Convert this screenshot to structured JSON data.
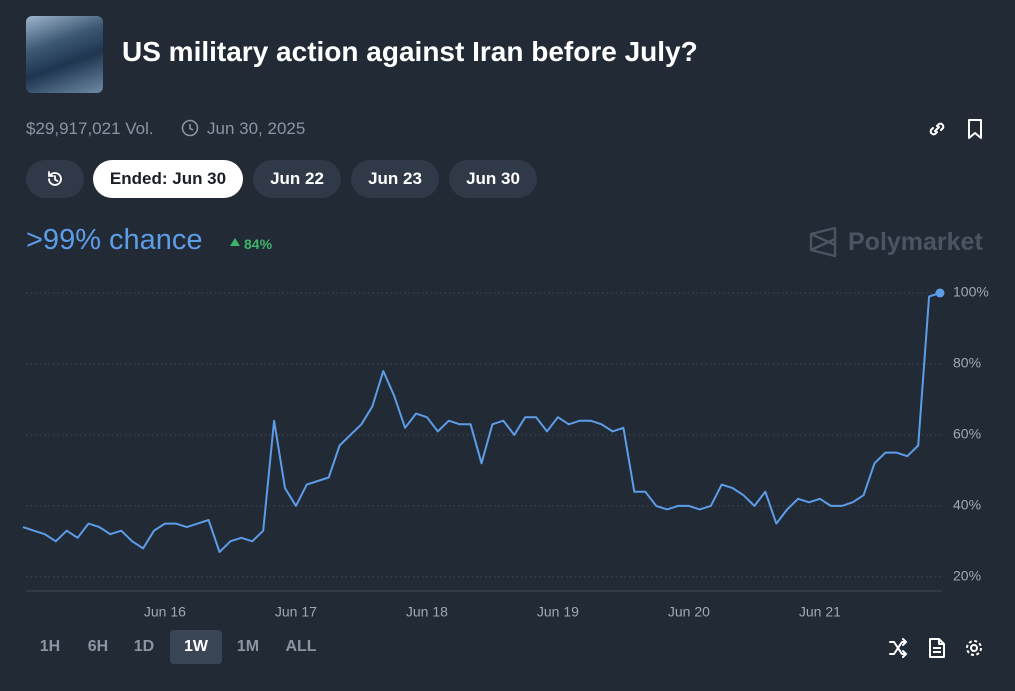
{
  "header": {
    "title": "US military action against Iran before July?",
    "volume": "$29,917,021 Vol.",
    "end_date": "Jun 30, 2025"
  },
  "tabs": {
    "items": [
      "Ended: Jun 30",
      "Jun 22",
      "Jun 23",
      "Jun 30"
    ],
    "active": 0
  },
  "summary": {
    "chance": ">99% chance",
    "change": "84%",
    "brand": "Polymarket"
  },
  "ranges": {
    "items": [
      "1H",
      "6H",
      "1D",
      "1W",
      "1M",
      "ALL"
    ],
    "active": 3
  },
  "chart_data": {
    "type": "line",
    "categories": [
      null,
      null,
      null,
      null,
      null,
      null,
      null,
      null,
      null,
      null,
      null,
      null,
      null,
      "Jun 16",
      null,
      null,
      null,
      null,
      null,
      null,
      null,
      null,
      null,
      null,
      null,
      "Jun 17",
      null,
      null,
      null,
      null,
      null,
      null,
      null,
      null,
      null,
      null,
      null,
      "Jun 18",
      null,
      null,
      null,
      null,
      null,
      null,
      null,
      null,
      null,
      null,
      null,
      "Jun 19",
      null,
      null,
      null,
      null,
      null,
      null,
      null,
      null,
      null,
      null,
      null,
      "Jun 20",
      null,
      null,
      null,
      null,
      null,
      null,
      null,
      null,
      null,
      null,
      null,
      "Jun 21",
      null,
      null,
      null,
      null,
      null,
      null,
      null,
      null,
      null,
      null,
      null
    ],
    "series": [
      {
        "color": "#5d9ce6",
        "values": [
          34,
          33,
          32,
          30,
          33,
          31,
          35,
          34,
          32,
          33,
          30,
          28,
          33,
          35,
          35,
          34,
          35,
          36,
          27,
          30,
          31,
          30,
          33,
          64,
          45,
          40,
          46,
          47,
          48,
          57,
          60,
          63,
          68,
          78,
          71,
          62,
          66,
          65,
          61,
          64,
          63,
          63,
          52,
          63,
          64,
          60,
          65,
          65,
          61,
          65,
          63,
          64,
          64,
          63,
          61,
          62,
          44,
          44,
          40,
          39,
          40,
          40,
          39,
          40,
          46,
          45,
          43,
          40,
          44,
          35,
          39,
          42,
          41,
          42,
          40,
          40,
          41,
          43,
          52,
          55,
          55,
          54,
          57,
          99,
          100
        ]
      }
    ],
    "ylim": [
      16,
      100
    ],
    "yticks": [
      {
        "value": 20,
        "label": "20%"
      },
      {
        "value": 40,
        "label": "40%"
      },
      {
        "value": 60,
        "label": "60%"
      },
      {
        "value": 80,
        "label": "80%"
      },
      {
        "value": 100,
        "label": "100%"
      }
    ],
    "grid": true
  }
}
